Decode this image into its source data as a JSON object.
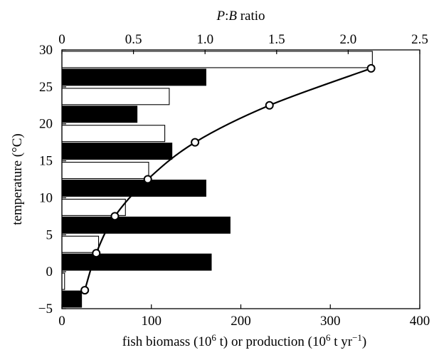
{
  "chart_data": {
    "type": "bar",
    "orientation": "horizontal",
    "x_bottom": {
      "label_main": "fish biomass (10",
      "label_sup1": "6",
      "label_mid": " t) or production (10",
      "label_sup2": "6",
      "label_mid2": " t yr",
      "label_sup3": "−1",
      "label_end": ")",
      "range": [
        0,
        400
      ],
      "ticks": [
        0,
        100,
        200,
        300,
        400
      ]
    },
    "x_top": {
      "label_italic1": "P",
      "label_colon": ":",
      "label_italic2": "B",
      "label_rest": " ratio",
      "range": [
        0,
        2.5
      ],
      "ticks": [
        "0",
        "0.5",
        "1.0",
        "1.5",
        "2.0",
        "2.5"
      ]
    },
    "y": {
      "label": "temperature (°C)",
      "range": [
        -5,
        30
      ],
      "ticks": [
        -5,
        0,
        5,
        10,
        15,
        20,
        25,
        30
      ]
    },
    "series": [
      {
        "name": "biomass",
        "style": "open bar",
        "color": "#ffffff",
        "temperature_bins": [
          [
            -3,
            -5
          ],
          [
            2,
            0
          ],
          [
            7,
            5
          ],
          [
            12,
            10
          ],
          [
            17,
            15
          ],
          [
            22,
            20
          ],
          [
            27,
            25
          ]
        ],
        "bins": [
          [
            -2,
            0.0
          ],
          [
            3,
            0.0
          ],
          [
            8,
            0.0
          ],
          [
            13,
            0.0
          ],
          [
            18,
            0.0
          ],
          [
            23,
            0.0
          ],
          [
            28,
            0.0
          ]
        ],
        "values": [
          3,
          41,
          71,
          97,
          115,
          120,
          347
        ]
      },
      {
        "name": "production",
        "style": "filled bar",
        "color": "#000000",
        "values": [
          22,
          167,
          188,
          161,
          123,
          84,
          161
        ]
      },
      {
        "name": "P:B ratio",
        "style": "line with open circle markers",
        "points": [
          {
            "pb": 0.16,
            "temp": -2.5
          },
          {
            "pb": 0.24,
            "temp": 2.5
          },
          {
            "pb": 0.37,
            "temp": 7.5
          },
          {
            "pb": 0.6,
            "temp": 12.5
          },
          {
            "pb": 0.93,
            "temp": 17.5
          },
          {
            "pb": 1.45,
            "temp": 22.5
          },
          {
            "pb": 2.16,
            "temp": 27.5
          }
        ]
      }
    ],
    "grid": false,
    "legend": "none"
  }
}
